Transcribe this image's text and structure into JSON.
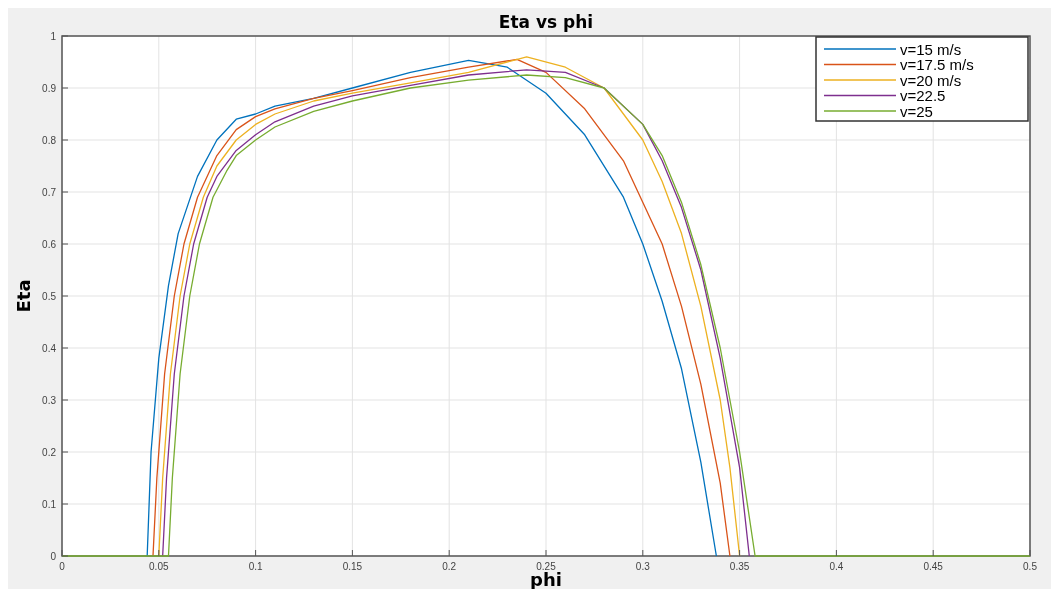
{
  "chart_data": {
    "type": "line",
    "title": "Eta  vs  phi",
    "xlabel": "phi",
    "ylabel": "Eta",
    "xlim": [
      0,
      0.5
    ],
    "xticks": [
      0,
      0.05,
      0.1,
      0.15,
      0.2,
      0.25,
      0.3,
      0.35,
      0.4,
      0.45,
      0.5
    ],
    "ylim": [
      0,
      1
    ],
    "yticks": [
      0,
      0.1,
      0.2,
      0.3,
      0.4,
      0.5,
      0.6,
      0.7,
      0.8,
      0.9,
      1
    ],
    "grid": true,
    "legend": "top right",
    "marker": "none",
    "line_style": "solid",
    "series": [
      {
        "name": "v=15 m/s",
        "color": "#0072bd",
        "x": [
          0.044,
          0.046,
          0.05,
          0.055,
          0.06,
          0.07,
          0.08,
          0.09,
          0.1,
          0.11,
          0.13,
          0.15,
          0.18,
          0.21,
          0.23,
          0.25,
          0.27,
          0.29,
          0.3,
          0.31,
          0.32,
          0.33,
          0.338
        ],
        "values": [
          0,
          0.2,
          0.38,
          0.52,
          0.62,
          0.73,
          0.8,
          0.84,
          0.85,
          0.865,
          0.88,
          0.9,
          0.93,
          0.953,
          0.94,
          0.89,
          0.81,
          0.69,
          0.6,
          0.49,
          0.36,
          0.18,
          0
        ]
      },
      {
        "name": "v=17.5 m/s",
        "color": "#d95319",
        "x": [
          0.047,
          0.049,
          0.053,
          0.058,
          0.063,
          0.07,
          0.08,
          0.09,
          0.1,
          0.11,
          0.13,
          0.15,
          0.18,
          0.21,
          0.235,
          0.25,
          0.27,
          0.29,
          0.31,
          0.32,
          0.33,
          0.34,
          0.345
        ],
        "values": [
          0,
          0.15,
          0.35,
          0.5,
          0.6,
          0.69,
          0.77,
          0.82,
          0.845,
          0.86,
          0.88,
          0.895,
          0.92,
          0.94,
          0.955,
          0.93,
          0.86,
          0.76,
          0.6,
          0.48,
          0.33,
          0.14,
          0
        ]
      },
      {
        "name": "v=20 m/s",
        "color": "#edb120",
        "x": [
          0.05,
          0.052,
          0.056,
          0.061,
          0.066,
          0.073,
          0.08,
          0.09,
          0.1,
          0.11,
          0.13,
          0.15,
          0.18,
          0.21,
          0.24,
          0.26,
          0.28,
          0.3,
          0.31,
          0.32,
          0.33,
          0.34,
          0.345,
          0.35
        ],
        "values": [
          0,
          0.15,
          0.35,
          0.5,
          0.6,
          0.69,
          0.75,
          0.8,
          0.83,
          0.85,
          0.875,
          0.89,
          0.91,
          0.93,
          0.96,
          0.94,
          0.9,
          0.8,
          0.72,
          0.62,
          0.48,
          0.3,
          0.17,
          0
        ]
      },
      {
        "name": "v=22.5",
        "color": "#7e2f8e",
        "x": [
          0.052,
          0.054,
          0.058,
          0.063,
          0.068,
          0.075,
          0.08,
          0.09,
          0.1,
          0.11,
          0.13,
          0.15,
          0.18,
          0.21,
          0.24,
          0.26,
          0.28,
          0.3,
          0.31,
          0.32,
          0.33,
          0.34,
          0.35,
          0.355
        ],
        "values": [
          0,
          0.15,
          0.35,
          0.5,
          0.6,
          0.69,
          0.73,
          0.78,
          0.81,
          0.835,
          0.865,
          0.885,
          0.905,
          0.925,
          0.935,
          0.93,
          0.9,
          0.83,
          0.76,
          0.67,
          0.55,
          0.38,
          0.17,
          0
        ]
      },
      {
        "name": "v=25",
        "color": "#77ac30",
        "x": [
          0,
          0.055,
          0.057,
          0.061,
          0.066,
          0.071,
          0.078,
          0.085,
          0.09,
          0.1,
          0.11,
          0.13,
          0.15,
          0.18,
          0.21,
          0.24,
          0.26,
          0.28,
          0.3,
          0.31,
          0.32,
          0.33,
          0.34,
          0.35,
          0.358,
          0.5
        ],
        "values": [
          0,
          0,
          0.15,
          0.35,
          0.5,
          0.6,
          0.69,
          0.74,
          0.77,
          0.8,
          0.825,
          0.855,
          0.875,
          0.9,
          0.915,
          0.925,
          0.92,
          0.9,
          0.83,
          0.77,
          0.68,
          0.56,
          0.4,
          0.2,
          0,
          0
        ]
      }
    ]
  }
}
